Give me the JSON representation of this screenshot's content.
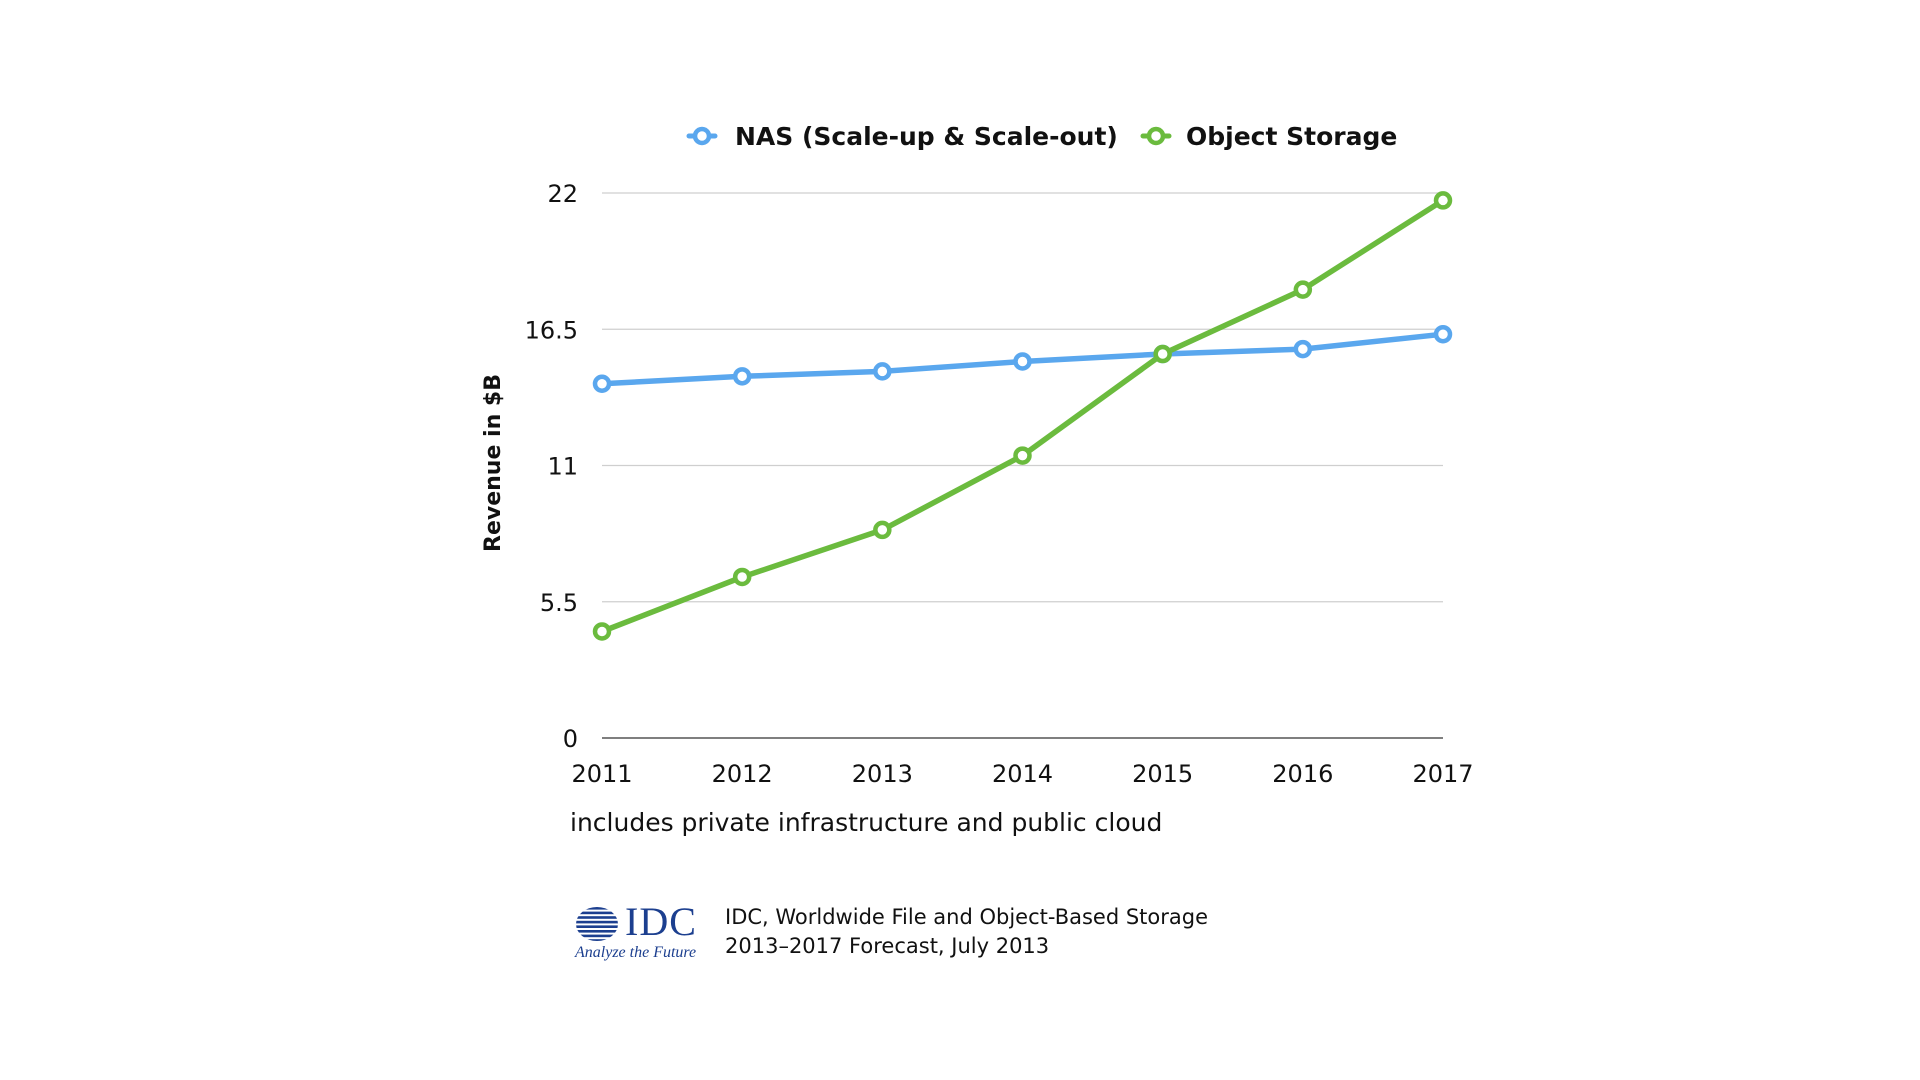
{
  "chart_data": {
    "type": "line",
    "ylabel": "Revenue in $B",
    "xlabel": "",
    "x": [
      "2011",
      "2012",
      "2013",
      "2014",
      "2015",
      "2016",
      "2017"
    ],
    "ylim": [
      0,
      22
    ],
    "yticks": [
      "0",
      "5.5",
      "11",
      "16.5",
      "22"
    ],
    "grid": "horizontal",
    "legend_position": "top",
    "series": [
      {
        "name": "NAS (Scale-up & Scale-out)",
        "color": "#5aa7ee",
        "values": [
          14.3,
          14.6,
          14.8,
          15.2,
          15.5,
          15.7,
          16.3
        ]
      },
      {
        "name": "Object Storage",
        "color": "#6bbb3e",
        "values": [
          4.3,
          6.5,
          8.4,
          11.4,
          15.5,
          18.1,
          21.7
        ]
      }
    ]
  },
  "note": "includes private infrastructure and public cloud",
  "logo": {
    "name": "IDC",
    "tagline": "Analyze the Future",
    "color": "#1c3f8f"
  },
  "source": {
    "line1": "IDC, Worldwide File and Object-Based Storage",
    "line2": "2013–2017 Forecast, July 2013"
  }
}
